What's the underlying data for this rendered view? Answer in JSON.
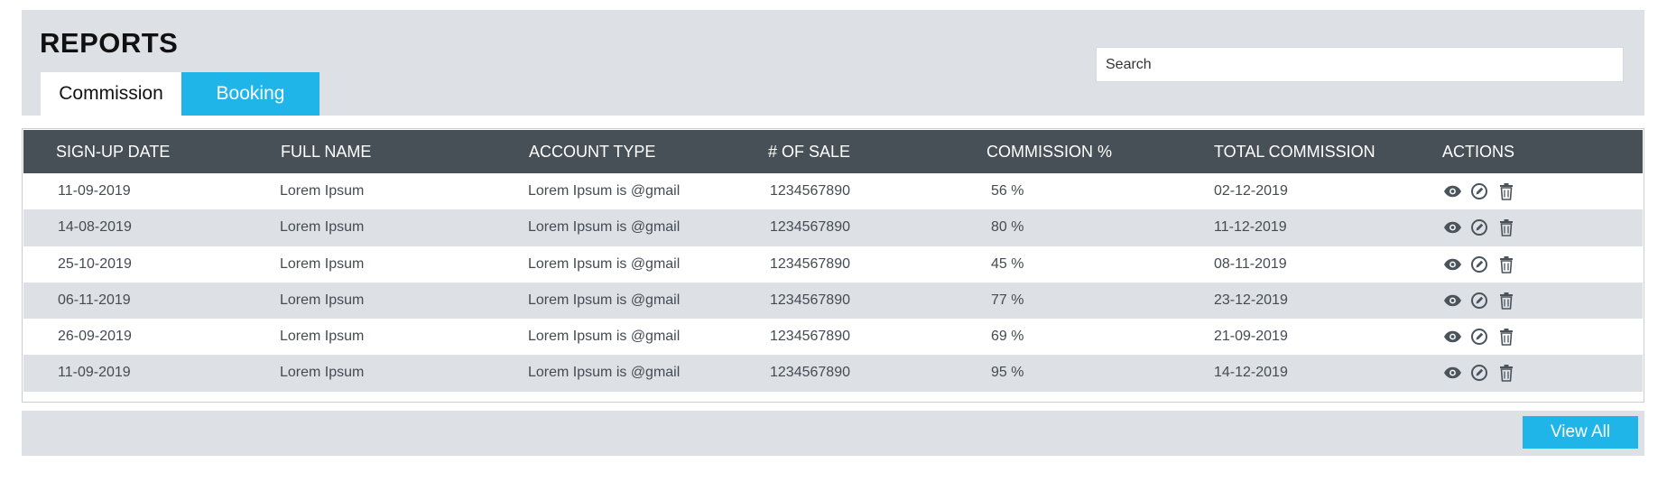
{
  "page": {
    "title": "REPORTS"
  },
  "tabs": [
    {
      "label": "Commission",
      "active": true
    },
    {
      "label": "Booking",
      "active": false
    }
  ],
  "search": {
    "placeholder": "Search",
    "value": ""
  },
  "table": {
    "columns": [
      "SIGN-UP DATE",
      "FULL NAME",
      "ACCOUNT TYPE",
      "# OF SALE",
      "COMMISSION %",
      "TOTAL COMMISSION",
      "ACTIONS"
    ],
    "rows": [
      {
        "signup_date": "11-09-2019",
        "full_name": "Lorem Ipsum",
        "account_type": "Lorem Ipsum is @gmail",
        "sales": "1234567890",
        "commission": "56 %",
        "total_commission": "02-12-2019"
      },
      {
        "signup_date": "14-08-2019",
        "full_name": "Lorem Ipsum",
        "account_type": "Lorem Ipsum is @gmail",
        "sales": "1234567890",
        "commission": "80 %",
        "total_commission": "11-12-2019"
      },
      {
        "signup_date": "25-10-2019",
        "full_name": "Lorem Ipsum",
        "account_type": "Lorem Ipsum is @gmail",
        "sales": "1234567890",
        "commission": "45 %",
        "total_commission": "08-11-2019"
      },
      {
        "signup_date": "06-11-2019",
        "full_name": "Lorem Ipsum",
        "account_type": "Lorem Ipsum is @gmail",
        "sales": "1234567890",
        "commission": "77 %",
        "total_commission": "23-12-2019"
      },
      {
        "signup_date": "26-09-2019",
        "full_name": "Lorem Ipsum",
        "account_type": "Lorem Ipsum is @gmail",
        "sales": "1234567890",
        "commission": "69 %",
        "total_commission": "21-09-2019"
      },
      {
        "signup_date": "11-09-2019",
        "full_name": "Lorem Ipsum",
        "account_type": "Lorem Ipsum is @gmail",
        "sales": "1234567890",
        "commission": "95 %",
        "total_commission": "14-12-2019"
      }
    ],
    "row_actions": [
      "eye-icon",
      "edit-icon",
      "trash-icon"
    ]
  },
  "footer": {
    "view_all_label": "View All"
  },
  "colors": {
    "accent": "#1fb5e9",
    "header_bg": "#465056",
    "panel_bg": "#dde1e5"
  }
}
